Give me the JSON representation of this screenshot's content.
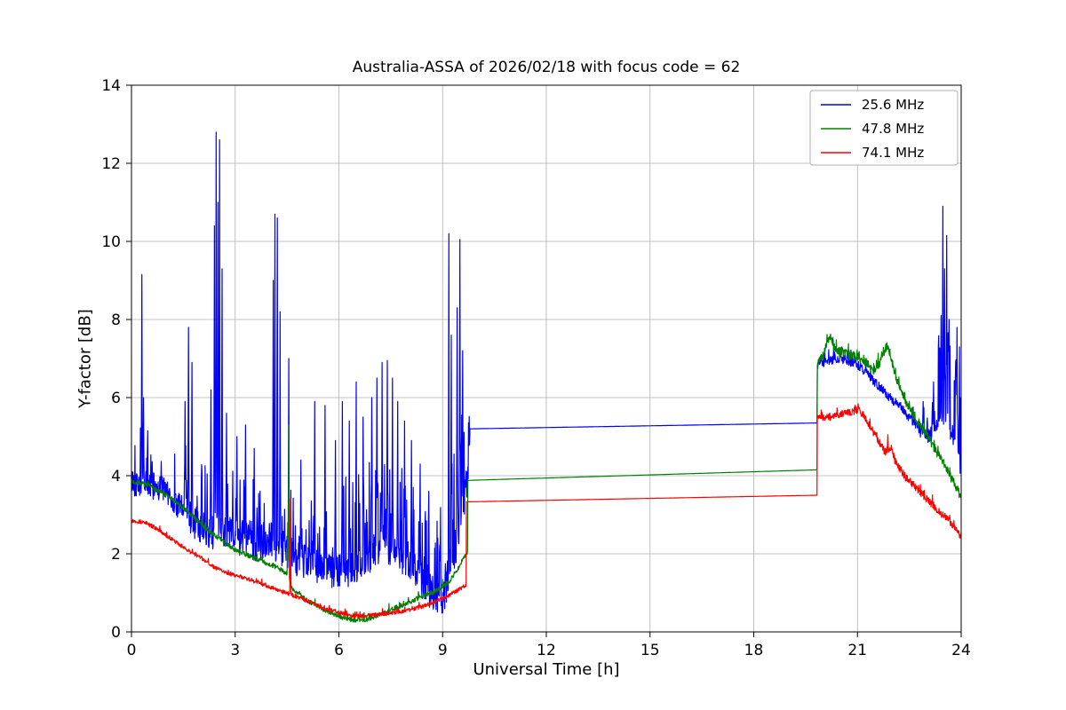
{
  "chart_data": {
    "type": "line",
    "title": "Australia-ASSA of 2026/02/18 with focus code = 62",
    "xlabel": "Universal Time [h]",
    "ylabel": "Y-factor [dB]",
    "xlim": [
      0,
      24
    ],
    "ylim": [
      0,
      14
    ],
    "xticks": [
      0,
      3,
      6,
      9,
      12,
      15,
      18,
      21,
      24
    ],
    "yticks": [
      0,
      2,
      4,
      6,
      8,
      10,
      12,
      14
    ],
    "grid": true,
    "grid_color": "#b0b0b0",
    "legend_position": "upper right",
    "series": [
      {
        "name": "25.6 MHz",
        "color": "#0000ff",
        "seed": 42,
        "keypoints": [
          [
            0,
            3.85
          ],
          [
            0.2,
            3.8
          ],
          [
            0.5,
            3.75
          ],
          [
            0.8,
            3.7
          ],
          [
            1.2,
            3.4
          ],
          [
            1.6,
            3.0
          ],
          [
            2.0,
            2.75
          ],
          [
            2.4,
            2.6
          ],
          [
            2.8,
            2.5
          ],
          [
            3.2,
            2.4
          ],
          [
            3.6,
            2.3
          ],
          [
            4.0,
            2.4
          ],
          [
            4.4,
            2.1
          ],
          [
            4.8,
            1.85
          ],
          [
            5.2,
            1.7
          ],
          [
            5.6,
            1.6
          ],
          [
            6.0,
            1.55
          ],
          [
            6.4,
            1.6
          ],
          [
            6.8,
            1.9
          ],
          [
            7.2,
            2.2
          ],
          [
            7.6,
            2.1
          ],
          [
            8.0,
            1.8
          ],
          [
            8.4,
            1.3
          ],
          [
            8.8,
            0.9
          ],
          [
            9.0,
            0.9
          ],
          [
            9.2,
            1.6
          ],
          [
            9.4,
            2.4
          ],
          [
            9.6,
            3.2
          ],
          [
            9.78,
            4.3
          ],
          [
            9.79,
            5.2
          ],
          [
            19.83,
            5.35
          ],
          [
            19.84,
            6.85
          ],
          [
            20.0,
            6.9
          ],
          [
            20.5,
            7.0
          ],
          [
            21.0,
            6.85
          ],
          [
            21.3,
            6.6
          ],
          [
            21.6,
            6.3
          ],
          [
            22.0,
            5.95
          ],
          [
            22.4,
            5.6
          ],
          [
            22.8,
            5.2
          ],
          [
            23.1,
            5.0
          ],
          [
            23.35,
            5.4
          ],
          [
            23.55,
            5.5
          ],
          [
            23.75,
            5.1
          ],
          [
            23.9,
            4.6
          ],
          [
            24,
            4.2
          ]
        ],
        "noise": [
          {
            "x0": 0,
            "x1": 1.5,
            "amp": 0.35,
            "burst_amp": 1.2,
            "burst_prob": 0.15
          },
          {
            "x0": 1.5,
            "x1": 4.5,
            "amp": 0.5,
            "burst_amp": 1.8,
            "burst_prob": 0.2
          },
          {
            "x0": 4.5,
            "x1": 9.0,
            "amp": 0.45,
            "burst_amp": 2.2,
            "burst_prob": 0.2
          },
          {
            "x0": 9.0,
            "x1": 9.78,
            "amp": 0.6,
            "burst_amp": 2.5,
            "burst_prob": 0.25
          },
          {
            "x0": 19.84,
            "x1": 22.6,
            "amp": 0.12,
            "burst_amp": 0.3,
            "burst_prob": 0.1
          },
          {
            "x0": 22.6,
            "x1": 23.3,
            "amp": 0.2,
            "burst_amp": 0.8,
            "burst_prob": 0.2
          },
          {
            "x0": 23.3,
            "x1": 24,
            "amp": 0.3,
            "burst_amp": 2.5,
            "burst_prob": 0.35
          }
        ],
        "spikes": [
          [
            0.3,
            9.15
          ],
          [
            0.35,
            6.0
          ],
          [
            1.55,
            5.9
          ],
          [
            1.65,
            7.8
          ],
          [
            1.75,
            6.9
          ],
          [
            2.3,
            6.2
          ],
          [
            2.4,
            10.4
          ],
          [
            2.45,
            12.8
          ],
          [
            2.5,
            11.0
          ],
          [
            2.55,
            12.6
          ],
          [
            2.62,
            9.3
          ],
          [
            2.75,
            5.6
          ],
          [
            3.05,
            5.0
          ],
          [
            3.3,
            5.3
          ],
          [
            3.55,
            4.7
          ],
          [
            4.1,
            9.0
          ],
          [
            4.15,
            10.7
          ],
          [
            4.22,
            10.6
          ],
          [
            4.3,
            8.2
          ],
          [
            4.55,
            7.0
          ],
          [
            4.9,
            4.4
          ],
          [
            5.3,
            5.9
          ],
          [
            5.6,
            5.8
          ],
          [
            5.9,
            4.9
          ],
          [
            6.1,
            5.9
          ],
          [
            6.3,
            5.4
          ],
          [
            6.5,
            6.4
          ],
          [
            6.7,
            5.5
          ],
          [
            6.95,
            6.0
          ],
          [
            7.1,
            6.5
          ],
          [
            7.25,
            6.9
          ],
          [
            7.4,
            6.95
          ],
          [
            7.55,
            6.5
          ],
          [
            7.7,
            5.9
          ],
          [
            7.9,
            5.4
          ],
          [
            8.1,
            4.9
          ],
          [
            8.35,
            4.3
          ],
          [
            8.6,
            3.6
          ],
          [
            9.18,
            10.2
          ],
          [
            9.25,
            7.6
          ],
          [
            9.42,
            8.3
          ],
          [
            9.5,
            10.05
          ],
          [
            9.58,
            7.2
          ],
          [
            20.9,
            7.15
          ],
          [
            22.9,
            5.9
          ],
          [
            23.2,
            6.4
          ],
          [
            23.42,
            8.1
          ],
          [
            23.47,
            10.9
          ],
          [
            23.52,
            9.3
          ],
          [
            23.58,
            10.15
          ],
          [
            23.65,
            8.0
          ],
          [
            23.88,
            7.8
          ],
          [
            23.95,
            7.3
          ]
        ]
      },
      {
        "name": "47.8 MHz",
        "color": "#008000",
        "seed": 7,
        "keypoints": [
          [
            0,
            3.85
          ],
          [
            0.3,
            3.8
          ],
          [
            0.6,
            3.7
          ],
          [
            1.0,
            3.5
          ],
          [
            1.4,
            3.25
          ],
          [
            1.8,
            2.95
          ],
          [
            2.2,
            2.6
          ],
          [
            2.6,
            2.35
          ],
          [
            3.0,
            2.1
          ],
          [
            3.4,
            1.95
          ],
          [
            3.8,
            1.8
          ],
          [
            4.2,
            1.65
          ],
          [
            4.5,
            1.5
          ],
          [
            4.65,
            1.1
          ],
          [
            5.0,
            0.85
          ],
          [
            5.5,
            0.6
          ],
          [
            6.0,
            0.4
          ],
          [
            6.4,
            0.3
          ],
          [
            6.8,
            0.32
          ],
          [
            7.2,
            0.45
          ],
          [
            7.6,
            0.6
          ],
          [
            8.0,
            0.75
          ],
          [
            8.4,
            0.9
          ],
          [
            8.8,
            1.05
          ],
          [
            9.2,
            1.3
          ],
          [
            9.5,
            1.7
          ],
          [
            9.72,
            2.05
          ],
          [
            9.73,
            3.88
          ],
          [
            19.83,
            4.15
          ],
          [
            19.84,
            6.85
          ],
          [
            20.0,
            7.05
          ],
          [
            20.2,
            7.6
          ],
          [
            20.35,
            7.2
          ],
          [
            20.6,
            7.15
          ],
          [
            20.9,
            7.05
          ],
          [
            21.2,
            6.95
          ],
          [
            21.45,
            6.7
          ],
          [
            21.7,
            6.95
          ],
          [
            21.85,
            7.35
          ],
          [
            22.0,
            6.9
          ],
          [
            22.2,
            6.3
          ],
          [
            22.5,
            5.7
          ],
          [
            22.8,
            5.3
          ],
          [
            23.1,
            4.9
          ],
          [
            23.5,
            4.3
          ],
          [
            23.8,
            3.8
          ],
          [
            24,
            3.45
          ]
        ],
        "noise": [
          {
            "x0": 0,
            "x1": 9.72,
            "amp": 0.06,
            "burst_amp": 0.15,
            "burst_prob": 0.05
          },
          {
            "x0": 19.84,
            "x1": 24,
            "amp": 0.12,
            "burst_amp": 0.25,
            "burst_prob": 0.1
          }
        ],
        "spikes": [
          [
            4.52,
            2.8
          ],
          [
            4.55,
            5.3
          ]
        ]
      },
      {
        "name": "74.1 MHz",
        "color": "#ff0000",
        "seed": 13,
        "keypoints": [
          [
            0,
            2.85
          ],
          [
            0.4,
            2.8
          ],
          [
            0.8,
            2.6
          ],
          [
            1.2,
            2.35
          ],
          [
            1.6,
            2.1
          ],
          [
            2.0,
            1.9
          ],
          [
            2.4,
            1.65
          ],
          [
            2.8,
            1.5
          ],
          [
            3.2,
            1.4
          ],
          [
            3.6,
            1.28
          ],
          [
            4.0,
            1.15
          ],
          [
            4.4,
            1.02
          ],
          [
            4.8,
            0.9
          ],
          [
            5.2,
            0.75
          ],
          [
            5.6,
            0.6
          ],
          [
            6.0,
            0.5
          ],
          [
            6.4,
            0.4
          ],
          [
            6.8,
            0.42
          ],
          [
            7.2,
            0.45
          ],
          [
            7.6,
            0.5
          ],
          [
            8.0,
            0.55
          ],
          [
            8.4,
            0.65
          ],
          [
            8.8,
            0.78
          ],
          [
            9.2,
            0.95
          ],
          [
            9.5,
            1.1
          ],
          [
            9.68,
            1.2
          ],
          [
            9.69,
            3.33
          ],
          [
            19.83,
            3.5
          ],
          [
            19.84,
            5.45
          ],
          [
            20.1,
            5.5
          ],
          [
            20.4,
            5.55
          ],
          [
            20.7,
            5.6
          ],
          [
            21.0,
            5.68
          ],
          [
            21.15,
            5.6
          ],
          [
            21.4,
            5.2
          ],
          [
            21.6,
            4.9
          ],
          [
            21.8,
            4.6
          ],
          [
            21.95,
            4.75
          ],
          [
            22.1,
            4.35
          ],
          [
            22.4,
            3.95
          ],
          [
            22.7,
            3.7
          ],
          [
            23.0,
            3.4
          ],
          [
            23.4,
            3.05
          ],
          [
            23.7,
            2.8
          ],
          [
            24,
            2.45
          ]
        ],
        "noise": [
          {
            "x0": 0,
            "x1": 9.68,
            "amp": 0.05,
            "burst_amp": 0.12,
            "burst_prob": 0.05
          },
          {
            "x0": 19.84,
            "x1": 24,
            "amp": 0.1,
            "burst_amp": 0.2,
            "burst_prob": 0.08
          }
        ],
        "spikes": [
          [
            4.6,
            3.4
          ],
          [
            21.88,
            5.05
          ]
        ]
      }
    ]
  }
}
